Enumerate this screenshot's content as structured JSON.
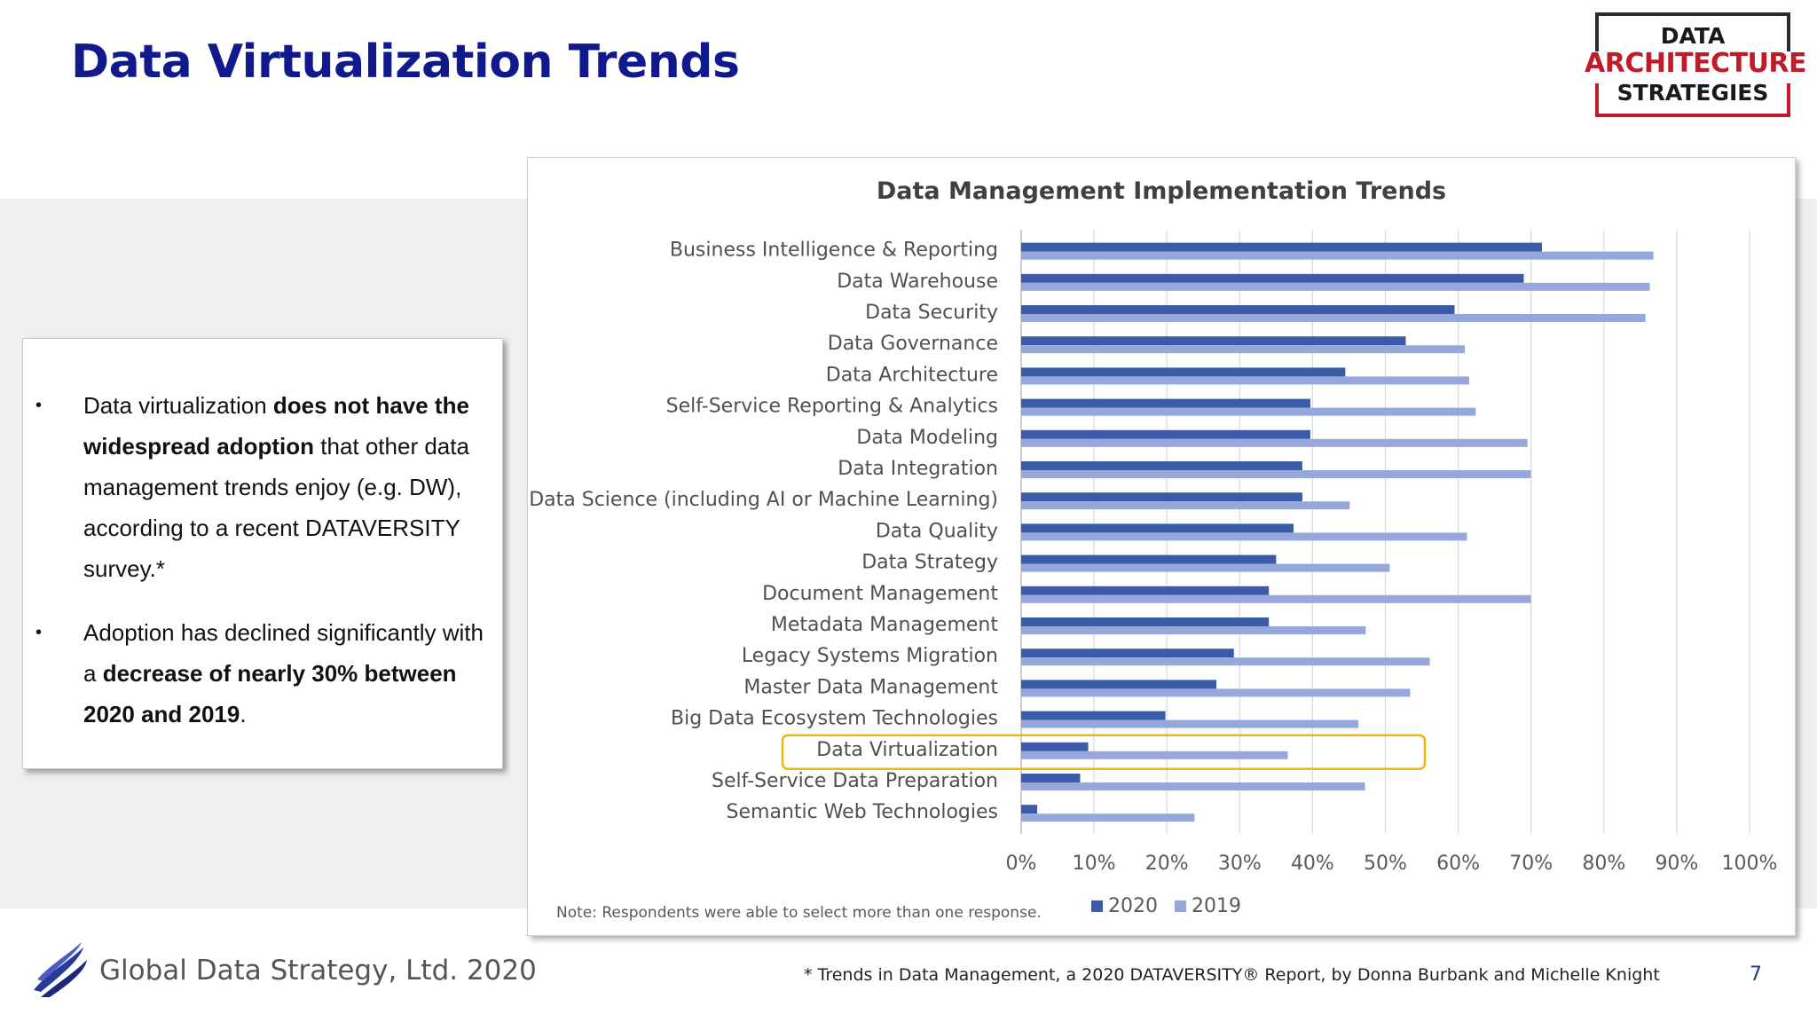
{
  "slide": {
    "title": "Data Virtualization Trends",
    "logo": {
      "line1": "DATA",
      "line2": "ARCHITECTURE",
      "line3": "STRATEGIES"
    },
    "bullets": [
      {
        "parts": [
          {
            "t": "Data virtualization ",
            "b": false
          },
          {
            "t": "does not have the widespread adoption",
            "b": true
          },
          {
            "t": " that other data management trends enjoy (e.g. DW), according to a recent DATAVERSITY survey.*",
            "b": false
          }
        ]
      },
      {
        "parts": [
          {
            "t": "Adoption has declined significantly with a ",
            "b": false
          },
          {
            "t": "decrease of nearly 30% between 2020 and 2019",
            "b": true
          },
          {
            "t": ".",
            "b": false
          }
        ]
      }
    ],
    "footer_company": "Global Data Strategy, Ltd. 2020",
    "footnote": "* Trends in Data Management, a 2020 DATAVERSITY® Report, by Donna Burbank and Michelle Knight",
    "page_number": "7"
  },
  "chart_data": {
    "type": "bar",
    "orientation": "horizontal",
    "title": "Data Management Implementation Trends",
    "note": "Note:  Respondents were able to select more than one response.",
    "categories": [
      "Business Intelligence & Reporting",
      "Data Warehouse",
      "Data Security",
      "Data Governance",
      "Data Architecture",
      "Self-Service Reporting & Analytics",
      "Data Modeling",
      "Data Integration",
      "Data Science (including AI or Machine Learning)",
      "Data Quality",
      "Data Strategy",
      "Document Management",
      "Metadata Management",
      "Legacy Systems Migration",
      "Master Data Management",
      "Big Data Ecosystem Technologies",
      "Data Virtualization",
      "Self-Service Data Preparation",
      "Semantic Web Technologies"
    ],
    "series": [
      {
        "name": "2020",
        "color": "#3a5ba8",
        "values": [
          71.5,
          69,
          59.5,
          52.8,
          44.5,
          39.7,
          39.7,
          38.6,
          38.6,
          37.4,
          35,
          34,
          34,
          29.2,
          26.8,
          19.8,
          9.2,
          8.1,
          2.2
        ]
      },
      {
        "name": "2019",
        "color": "#95a7db",
        "values": [
          86.8,
          86.3,
          85.7,
          60.9,
          61.5,
          62.4,
          69.5,
          70,
          45.1,
          61.2,
          50.6,
          70,
          47.3,
          56.1,
          53.4,
          46.3,
          36.6,
          47.2,
          23.8
        ]
      }
    ],
    "xlim": [
      0,
      100
    ],
    "xticks": [
      "0%",
      "10%",
      "20%",
      "30%",
      "40%",
      "50%",
      "60%",
      "70%",
      "80%",
      "90%",
      "100%"
    ],
    "grid": true,
    "legend": "bottom",
    "highlight_category": "Data Virtualization",
    "highlight_color": "#f2b705"
  }
}
